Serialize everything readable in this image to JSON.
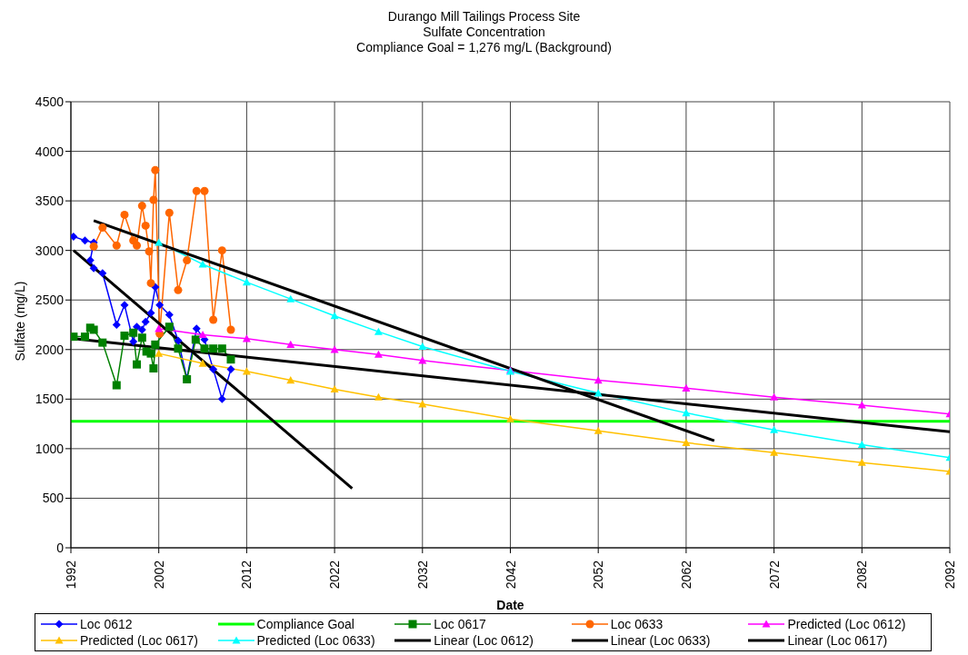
{
  "chart_data": {
    "type": "line",
    "title": "Durango Mill Tailings Process Site",
    "subtitle": "Sulfate Concentration\nCompliance Goal = 1,276 mg/L (Background)",
    "xlabel": "Date",
    "ylabel": "Sulfate (mg/L)",
    "xlim": [
      1992,
      2092
    ],
    "xticks": [
      1992,
      2002,
      2012,
      2022,
      2032,
      2042,
      2052,
      2062,
      2072,
      2082,
      2092
    ],
    "ylim": [
      0,
      4500
    ],
    "yticks": [
      0,
      500,
      1000,
      1500,
      2000,
      2500,
      3000,
      3500,
      4000,
      4500
    ],
    "grid": true,
    "legend": "bottom",
    "series": [
      {
        "name": "Loc 0612",
        "color": "#0000ff",
        "marker": "diamond",
        "x": [
          1992.3,
          1993.6,
          1994.6,
          1994.2,
          1994.6,
          1995.6,
          1997.2,
          1998.1,
          1999.1,
          1999.5,
          2000.1,
          2000.5,
          2001.1,
          2001.6,
          2002.1,
          2003.2,
          2004.2,
          2005.2,
          2006.3,
          2007.2,
          2008.2,
          2009.2,
          2010.2
        ],
        "values": [
          3140,
          3100,
          3080,
          2900,
          2820,
          2770,
          2250,
          2450,
          2080,
          2230,
          2200,
          2280,
          2370,
          2630,
          2450,
          2350,
          2090,
          1710,
          2210,
          2100,
          1800,
          1500,
          1800
        ]
      },
      {
        "name": "Compliance Goal",
        "color": "#00ff00",
        "marker": "none",
        "x": [
          1992,
          2092
        ],
        "values": [
          1276,
          1276
        ]
      },
      {
        "name": "Loc 0617",
        "color": "#008000",
        "marker": "square",
        "x": [
          1992.3,
          1993.6,
          1994.2,
          1994.6,
          1995.6,
          1997.2,
          1998.1,
          1999.1,
          1999.5,
          2000.1,
          2000.6,
          2001.1,
          2001.4,
          2001.6,
          2003.2,
          2004.2,
          2005.2,
          2006.2,
          2007.2,
          2008.2,
          2009.2,
          2010.2
        ],
        "values": [
          2130,
          2130,
          2220,
          2200,
          2070,
          1640,
          2140,
          2170,
          1850,
          2120,
          1980,
          1960,
          1810,
          2050,
          2230,
          2010,
          1700,
          2100,
          2010,
          2010,
          2010,
          1900
        ]
      },
      {
        "name": "Loc 0633",
        "color": "#ff6600",
        "marker": "circle",
        "x": [
          1994.6,
          1995.6,
          1997.2,
          1998.1,
          1999.1,
          1999.5,
          2000.1,
          2000.5,
          2000.9,
          2001.1,
          2001.4,
          2001.6,
          2002.1,
          2003.2,
          2004.2,
          2005.2,
          2006.3,
          2007.2,
          2008.2,
          2009.2,
          2010.2
        ],
        "values": [
          3040,
          3230,
          3050,
          3360,
          3100,
          3050,
          3450,
          3250,
          2990,
          2670,
          3510,
          3810,
          2160,
          3380,
          2600,
          2900,
          3600,
          3600,
          2300,
          3000,
          2200
        ]
      },
      {
        "name": "Predicted (Loc 0612)",
        "color": "#ff00ff",
        "marker": "triangle",
        "x": [
          2002,
          2007,
          2012,
          2017,
          2022,
          2027,
          2032,
          2042,
          2052,
          2062,
          2072,
          2082,
          2092
        ],
        "values": [
          2210,
          2150,
          2110,
          2050,
          2000,
          1950,
          1890,
          1790,
          1690,
          1610,
          1520,
          1440,
          1350
        ]
      },
      {
        "name": "Predicted (Loc 0617)",
        "color": "#ffc000",
        "marker": "triangle",
        "x": [
          2002,
          2007,
          2012,
          2017,
          2022,
          2027,
          2032,
          2042,
          2052,
          2062,
          2072,
          2082,
          2092
        ],
        "values": [
          1960,
          1860,
          1780,
          1690,
          1600,
          1520,
          1450,
          1300,
          1180,
          1060,
          960,
          860,
          770
        ]
      },
      {
        "name": "Predicted (Loc 0633)",
        "color": "#00ffff",
        "marker": "triangle",
        "x": [
          2002,
          2007,
          2012,
          2017,
          2022,
          2027,
          2032,
          2042,
          2052,
          2062,
          2072,
          2082,
          2092
        ],
        "values": [
          3080,
          2860,
          2680,
          2510,
          2340,
          2180,
          2030,
          1780,
          1560,
          1360,
          1190,
          1040,
          910
        ]
      },
      {
        "name": "Linear (Loc 0612)",
        "color": "#000000",
        "marker": "none",
        "x": [
          1992.3,
          2024
        ],
        "values": [
          3000,
          600
        ]
      },
      {
        "name": "Linear (Loc 0633)",
        "color": "#000000",
        "marker": "none",
        "x": [
          1994.6,
          2065.2
        ],
        "values": [
          3300,
          1080
        ]
      },
      {
        "name": "Linear (Loc 0617)",
        "color": "#000000",
        "marker": "none",
        "x": [
          1992.3,
          2092
        ],
        "values": [
          2110,
          1170
        ]
      }
    ]
  }
}
